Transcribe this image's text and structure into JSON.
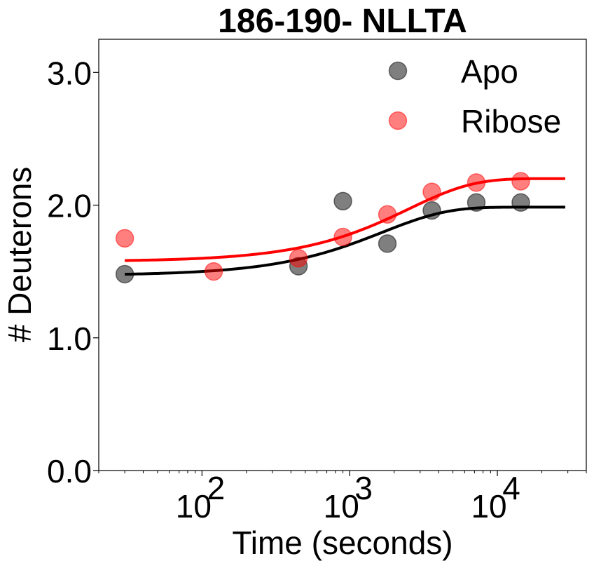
{
  "chart_data": {
    "type": "scatter",
    "title": "186-190- NLLTA",
    "xlabel": "Time (seconds)",
    "ylabel": "# Deuterons",
    "xscale": "log",
    "xlim": [
      20,
      40000
    ],
    "ylim": [
      0.0,
      3.25
    ],
    "xticks": [
      {
        "value": 100,
        "base": "10",
        "exp": "2"
      },
      {
        "value": 1000,
        "base": "10",
        "exp": "3"
      },
      {
        "value": 10000,
        "base": "10",
        "exp": "4"
      }
    ],
    "yticks": [
      {
        "value": 0.0,
        "label": "0.0"
      },
      {
        "value": 1.0,
        "label": "1.0"
      },
      {
        "value": 2.0,
        "label": "2.0"
      },
      {
        "value": 3.0,
        "label": "3.0"
      }
    ],
    "grid": false,
    "legend_position": "top-right",
    "series": [
      {
        "name": "Apo",
        "color": "#000000",
        "marker_alpha": 0.5,
        "points": [
          {
            "x": 30,
            "y": 1.48
          },
          {
            "x": 450,
            "y": 1.54
          },
          {
            "x": 900,
            "y": 2.03
          },
          {
            "x": 1800,
            "y": 1.71
          },
          {
            "x": 3600,
            "y": 1.96
          },
          {
            "x": 7200,
            "y": 2.02
          },
          {
            "x": 14400,
            "y": 2.02
          }
        ],
        "fit": {
          "min": 1.47,
          "max": 1.985,
          "k": 0.0006,
          "x_range": [
            30,
            28800
          ]
        }
      },
      {
        "name": "Ribose",
        "color": "#ff0000",
        "marker_alpha": 0.5,
        "points": [
          {
            "x": 30,
            "y": 1.75
          },
          {
            "x": 120,
            "y": 1.5
          },
          {
            "x": 450,
            "y": 1.6
          },
          {
            "x": 900,
            "y": 1.76
          },
          {
            "x": 1800,
            "y": 1.93
          },
          {
            "x": 3600,
            "y": 2.1
          },
          {
            "x": 7200,
            "y": 2.17
          },
          {
            "x": 14400,
            "y": 2.18
          }
        ],
        "fit": {
          "min": 1.575,
          "max": 2.2,
          "k": 0.0004,
          "x_range": [
            30,
            28800
          ]
        }
      }
    ]
  }
}
